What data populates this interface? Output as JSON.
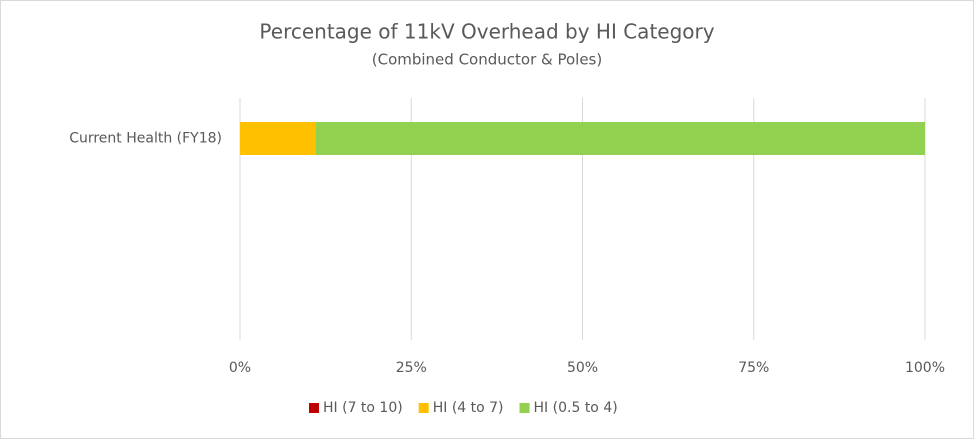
{
  "chart_data": {
    "type": "stacked_bar_horizontal",
    "title": "Percentage of 11kV Overhead by HI Category",
    "subtitle": "(Combined Conductor & Poles)",
    "categories": [
      "Current Health (FY18)"
    ],
    "series": [
      {
        "name": "HI (7 to 10)",
        "color": "#c00000",
        "values": [
          0
        ]
      },
      {
        "name": "HI (4 to 7)",
        "color": "#ffc000",
        "values": [
          11
        ]
      },
      {
        "name": "HI (0.5 to 4)",
        "color": "#92d050",
        "values": [
          89
        ]
      }
    ],
    "xlim": [
      0,
      100
    ],
    "xticks": [
      {
        "value": 0,
        "label": "0%"
      },
      {
        "value": 25,
        "label": "25%"
      },
      {
        "value": 50,
        "label": "50%"
      },
      {
        "value": 75,
        "label": "75%"
      },
      {
        "value": 100,
        "label": "100%"
      }
    ],
    "grid": true,
    "legend": "bottom"
  }
}
